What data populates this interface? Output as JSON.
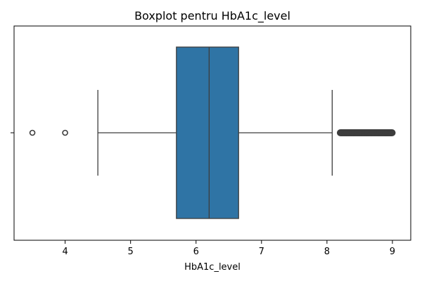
{
  "chart_data": {
    "type": "boxplot",
    "title": "Boxplot pentru HbA1c_level",
    "xlabel": "HbA1c_level",
    "ylabel": "",
    "xlim": [
      3.22,
      9.28
    ],
    "xticks": [
      4,
      5,
      6,
      7,
      8,
      9
    ],
    "grid": false,
    "legend": "none",
    "box": {
      "whisker_low": 4.5,
      "q1": 5.7,
      "median": 6.2,
      "q3": 6.65,
      "whisker_high": 8.08
    },
    "outliers_low": [
      3.5,
      4.0
    ],
    "outliers_high": [
      8.2,
      8.3,
      8.4,
      8.5,
      8.6,
      8.7,
      8.8,
      8.9,
      9.0
    ],
    "colors": {
      "box_fill": "#2f74a5",
      "line": "#3d3d3d",
      "outlier": "#3d3d3d"
    }
  }
}
